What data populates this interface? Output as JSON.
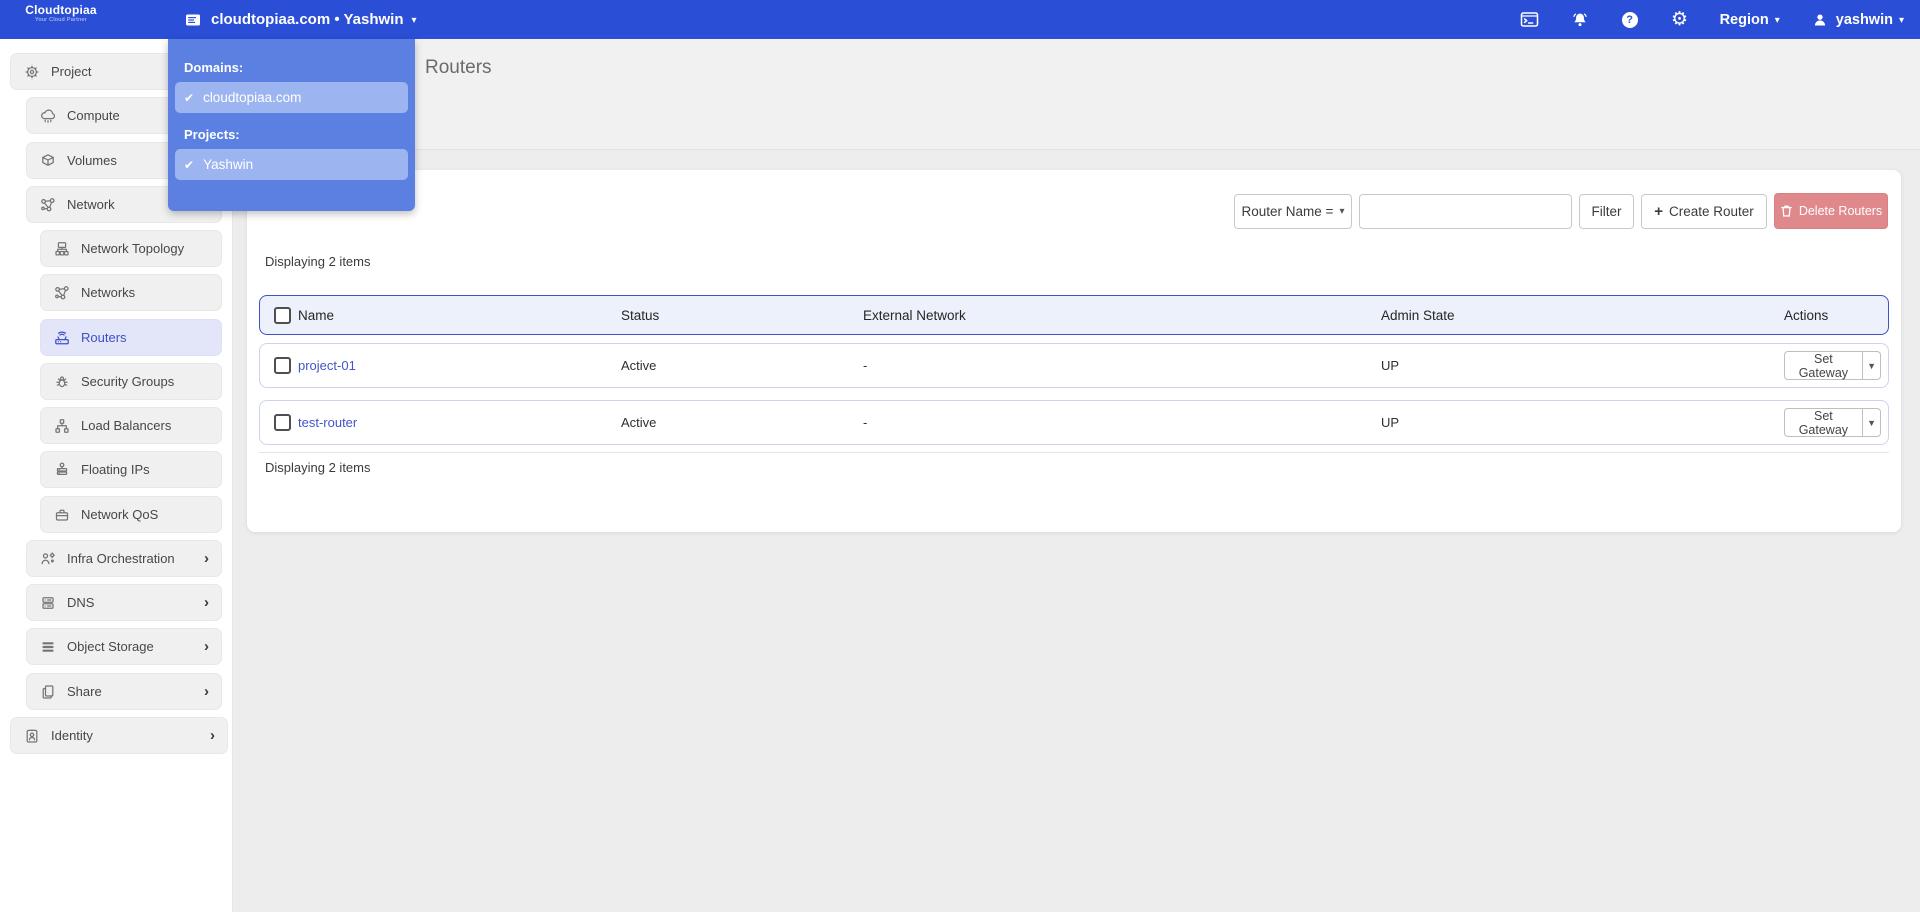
{
  "colors": {
    "navbar": "#2b4ed6",
    "accent": "#3c50c8",
    "dropdown_panel": "#5b80e2",
    "dropdown_item": "#9cb5f0",
    "link": "#4355c8",
    "delete_button": "#e0898c",
    "table_header_bg": "#edf1fc",
    "table_header_border": "#3f51c9",
    "selected_sidebar_bg": "#e3e6f8"
  },
  "navbar": {
    "logo_title": "Cloudtopiaa",
    "logo_tagline": "Your Cloud Partner",
    "context_switcher_label": "cloudtopiaa.com • Yashwin",
    "icons": [
      "console-icon",
      "bell-icon",
      "help-icon",
      "gear-icon"
    ],
    "region_label": "Region",
    "username": "yashwin"
  },
  "domain_project_dropdown": {
    "sections": [
      {
        "heading": "Domains:",
        "items": [
          {
            "label": "cloudtopiaa.com",
            "checked": true
          }
        ]
      },
      {
        "heading": "Projects:",
        "items": [
          {
            "label": "Yashwin",
            "checked": true
          }
        ]
      }
    ]
  },
  "sidebar": {
    "items": [
      {
        "label": "Project",
        "icon": "project-icon",
        "level": 0,
        "selected": false,
        "chevron": false
      },
      {
        "label": "Compute",
        "icon": "compute-icon",
        "level": 1,
        "selected": false,
        "chevron": false
      },
      {
        "label": "Volumes",
        "icon": "volumes-icon",
        "level": 1,
        "selected": false,
        "chevron": false
      },
      {
        "label": "Network",
        "icon": "network-icon",
        "level": 1,
        "selected": false,
        "chevron": false
      },
      {
        "label": "Network Topology",
        "icon": "network-topology-icon",
        "level": 2,
        "selected": false,
        "chevron": false
      },
      {
        "label": "Networks",
        "icon": "networks-icon",
        "level": 2,
        "selected": false,
        "chevron": false
      },
      {
        "label": "Routers",
        "icon": "routers-icon",
        "level": 2,
        "selected": true,
        "chevron": false
      },
      {
        "label": "Security Groups",
        "icon": "security-groups-icon",
        "level": 2,
        "selected": false,
        "chevron": false
      },
      {
        "label": "Load Balancers",
        "icon": "load-balancers-icon",
        "level": 2,
        "selected": false,
        "chevron": false
      },
      {
        "label": "Floating IPs",
        "icon": "floating-ips-icon",
        "level": 2,
        "selected": false,
        "chevron": false
      },
      {
        "label": "Network QoS",
        "icon": "network-qos-icon",
        "level": 2,
        "selected": false,
        "chevron": false
      },
      {
        "label": "Infra Orchestration",
        "icon": "infra-orchestration-icon",
        "level": 1,
        "selected": false,
        "chevron": true
      },
      {
        "label": "DNS",
        "icon": "dns-icon",
        "level": 1,
        "selected": false,
        "chevron": true
      },
      {
        "label": "Object Storage",
        "icon": "object-storage-icon",
        "level": 1,
        "selected": false,
        "chevron": true
      },
      {
        "label": "Share",
        "icon": "share-icon",
        "level": 1,
        "selected": false,
        "chevron": true
      },
      {
        "label": "Identity",
        "icon": "identity-icon",
        "level": 0,
        "selected": false,
        "chevron": true
      }
    ]
  },
  "page": {
    "title": "Routers"
  },
  "toolbar": {
    "filter_field_label": "Router Name =",
    "search_value": "",
    "filter_button": "Filter",
    "create_button": "Create Router",
    "delete_button": "Delete Routers"
  },
  "table": {
    "count_top": "Displaying 2 items",
    "count_bottom": "Displaying 2 items",
    "columns": [
      "Name",
      "Status",
      "External Network",
      "Admin State",
      "Actions"
    ],
    "rows": [
      {
        "name": "project-01",
        "status": "Active",
        "external_network": "-",
        "admin_state": "UP",
        "action_label": "Set Gateway"
      },
      {
        "name": "test-router",
        "status": "Active",
        "external_network": "-",
        "admin_state": "UP",
        "action_label": "Set Gateway"
      }
    ]
  }
}
